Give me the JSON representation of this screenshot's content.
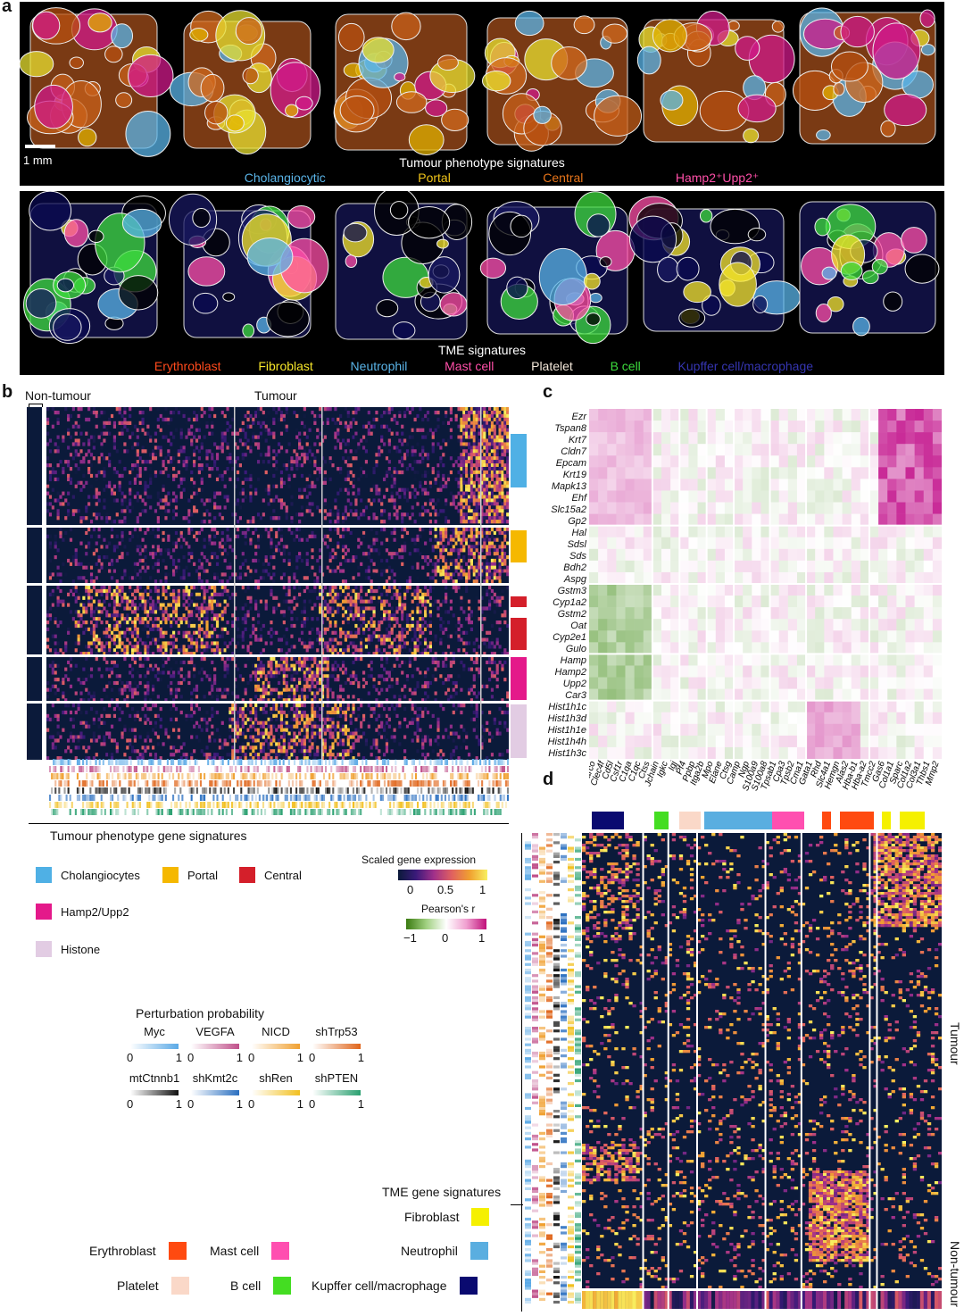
{
  "panel_a": {
    "letter": "a",
    "scale_bar": "1 mm",
    "top_title": "Tumour phenotype signatures",
    "top_signatures": [
      {
        "label": "Cholangiocytic",
        "color": "#5ab4e8"
      },
      {
        "label": "Portal",
        "color": "#f0c419"
      },
      {
        "label": "Central",
        "color": "#e8751a"
      },
      {
        "label": "Hamp2⁺Upp2⁺",
        "color": "#ff4fa8"
      }
    ],
    "bottom_title": "TME signatures",
    "bottom_signatures": [
      {
        "label": "Erythroblast",
        "color": "#ff4a1c"
      },
      {
        "label": "Fibroblast",
        "color": "#f5e52a"
      },
      {
        "label": "Neutrophil",
        "color": "#5ab4e8"
      },
      {
        "label": "Mast cell",
        "color": "#ff4fa8"
      },
      {
        "label": "Platelet",
        "color": "#f2e6d8"
      },
      {
        "label": "B cell",
        "color": "#3ddc3d"
      },
      {
        "label": "Kupffer cell/macrophage",
        "color": "#3535b0"
      }
    ]
  },
  "panel_b": {
    "letter": "b",
    "non_tumour": "Non-tumour",
    "tumour": "Tumour",
    "footer": "Tumour phenotype gene signatures",
    "legend": [
      {
        "label": "Cholangiocytes",
        "color": "#4fb0e5"
      },
      {
        "label": "Portal",
        "color": "#f5b800"
      },
      {
        "label": "Central",
        "color": "#d41f2a"
      },
      {
        "label": "Hamp2/Upp2",
        "color": "#e4198a"
      },
      {
        "label": "Histone",
        "color": "#e2cce3"
      }
    ]
  },
  "panel_c": {
    "letter": "c",
    "row_genes": [
      "Ezr",
      "Tspan8",
      "Krt7",
      "Cldn7",
      "Epcam",
      "Krt19",
      "Mapk13",
      "Ehf",
      "Slc15a2",
      "Gp2",
      "Hal",
      "Sdsl",
      "Sds",
      "Bdh2",
      "Aspg",
      "Gstm3",
      "Cyp1a2",
      "Gstm2",
      "Oat",
      "Cyp2e1",
      "Gulo",
      "Hamp",
      "Hamp2",
      "Upp2",
      "Car3",
      "Hist1h1c",
      "Hist1h3d",
      "Hist1h1e",
      "Hist1h4h",
      "Hist1h3c"
    ],
    "col_genes": [
      "Marco",
      "Clec4f",
      "Cd5l",
      "Csf1r",
      "C1qa",
      "C1qc",
      "Ctss",
      "Jchain",
      "Igkc",
      "Igj",
      "Pf4",
      "Ppbp",
      "Itga2b",
      "Mpo",
      "Elane",
      "Ctsg",
      "Camp",
      "Ngp",
      "S100a9",
      "S100a8",
      "Tpsab1",
      "Cpa3",
      "Tpsb2",
      "Cma1",
      "Gata1",
      "Rhd",
      "Slc4a1",
      "Hemgn",
      "Alas2",
      "Hba-b1",
      "Hba-a2",
      "Tmcc2",
      "Gas6",
      "Col1a1",
      "Sparc",
      "Col1a2",
      "Col3a1",
      "Thbs1",
      "Mmp2"
    ]
  },
  "scales": {
    "expr_title": "Scaled gene expression",
    "expr_ticks": [
      "0",
      "0.5",
      "1"
    ],
    "pearson_title": "Pearson's r",
    "pearson_ticks": [
      "−1",
      "0",
      "1"
    ]
  },
  "perturbation": {
    "title": "Perturbation probability",
    "items": [
      {
        "label": "Myc",
        "color": "#5aa9e6"
      },
      {
        "label": "VEGFA",
        "color": "#c0508a"
      },
      {
        "label": "NICD",
        "color": "#f0a030"
      },
      {
        "label": "shTrp53",
        "color": "#e0651a"
      },
      {
        "label": "mtCtnnb1",
        "color": "#111111"
      },
      {
        "label": "shKmt2c",
        "color": "#2a6fc0"
      },
      {
        "label": "shRen",
        "color": "#f2c020"
      },
      {
        "label": "shPTEN",
        "color": "#2aa070"
      }
    ],
    "tick_min": "0",
    "tick_max": "1"
  },
  "panel_d": {
    "letter": "d",
    "tumour": "Tumour",
    "non_tumour": "Non-tumour",
    "tme_title": "TME gene signatures",
    "tme_legend": [
      {
        "label": "Fibroblast",
        "color": "#f5f000"
      },
      {
        "label": "Neutrophil",
        "color": "#5aaee0"
      },
      {
        "label": "Erythroblast",
        "color": "#ff4a10"
      },
      {
        "label": "Mast cell",
        "color": "#ff4fb0"
      },
      {
        "label": "Platelet",
        "color": "#fad8c8"
      },
      {
        "label": "B cell",
        "color": "#44dd22"
      },
      {
        "label": "Kupffer cell/macrophage",
        "color": "#0a0a70"
      }
    ]
  }
}
